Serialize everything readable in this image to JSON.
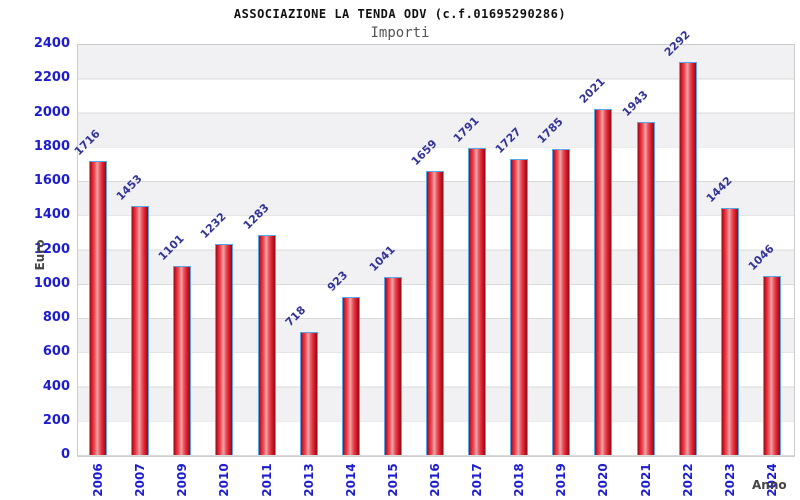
{
  "chart_data": {
    "type": "bar",
    "title": "ASSOCIAZIONE LA TENDA ODV (c.f.01695290286)",
    "subtitle": "Importi",
    "xlabel": "Anno",
    "ylabel": "Euro",
    "categories": [
      "2006",
      "2007",
      "2009",
      "2010",
      "2011",
      "2013",
      "2014",
      "2015",
      "2016",
      "2017",
      "2018",
      "2019",
      "2020",
      "2021",
      "2022",
      "2023",
      "2024"
    ],
    "values": [
      1716,
      1453,
      1101,
      1232,
      1283,
      718,
      923,
      1041,
      1659,
      1791,
      1727,
      1785,
      2021,
      1943,
      2292,
      1442,
      1046
    ],
    "ylim": [
      0,
      2400
    ],
    "ytick_step": 200,
    "yticks": [
      0,
      200,
      400,
      600,
      800,
      1000,
      1200,
      1400,
      1600,
      1800,
      2000,
      2200,
      2400
    ],
    "grid": "horizontal-bands",
    "legend": "none",
    "colors": {
      "tick_label": "#1d1dcf",
      "value_label": "#333399",
      "bar_main": "#e02030",
      "bar_highlight": "#f0a4a8",
      "bar_dark": "#9a0e16",
      "bar_border": "#58a6e8",
      "band_gray": "#f1f1f4",
      "grid_line": "#d9d9d9",
      "axis_text": "#444444",
      "title_color": "#111111"
    }
  }
}
